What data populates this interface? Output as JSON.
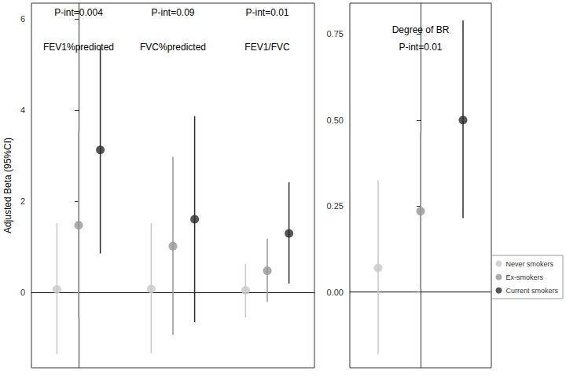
{
  "chart_data": [
    {
      "type": "scatter",
      "categories": [
        "FEV1%predicted",
        "FVC%predicted",
        "FEV1/FVC"
      ],
      "annotations": [
        "P-int=0.004",
        "P-int=0.09",
        "P-int=0.01"
      ],
      "y_label": "Adjusted Beta (95%CI)",
      "ylim": [
        -1.65,
        6.35
      ],
      "yticks": [
        0,
        2,
        4,
        6
      ],
      "grid": false,
      "tick_labels": "y",
      "legend": "right",
      "series": [
        {
          "name": "Never smokers",
          "color": "#c8c8c8",
          "marker": "circle",
          "values": [
            0.07,
            0.08,
            0.05
          ],
          "ci_lower": [
            -1.35,
            -1.33,
            -0.55
          ],
          "ci_upper": [
            1.52,
            1.52,
            0.63
          ]
        },
        {
          "name": "Ex-smokers",
          "color": "#969696",
          "marker": "circle",
          "values": [
            1.48,
            1.02,
            0.48
          ],
          "ci_lower": [
            -0.55,
            -0.93,
            -0.2
          ],
          "ci_upper": [
            3.53,
            2.98,
            1.18
          ]
        },
        {
          "name": "Current smokers",
          "color": "#2b2b2b",
          "marker": "circle",
          "values": [
            3.13,
            1.61,
            1.3
          ],
          "ci_lower": [
            0.86,
            -0.65,
            0.2
          ],
          "ci_upper": [
            5.4,
            3.87,
            2.42
          ]
        }
      ]
    },
    {
      "type": "scatter",
      "categories": [
        "Degree of BR"
      ],
      "annotations": [
        "P-int=0.01"
      ],
      "ylim": [
        -0.22,
        0.84
      ],
      "yticks": [
        {
          "value": 0,
          "label": "0.00"
        },
        {
          "value": 0.25,
          "label": "0.25"
        },
        {
          "value": 0.5,
          "label": "0.50"
        },
        {
          "value": 0.75,
          "label": "0.75"
        }
      ],
      "grid": false,
      "tick_labels": "y",
      "series": [
        {
          "name": "Never smokers",
          "color": "#c8c8c8",
          "marker": "circle",
          "values": [
            0.07
          ],
          "ci_lower": [
            -0.18
          ],
          "ci_upper": [
            0.325
          ]
        },
        {
          "name": "Ex-smokers",
          "color": "#969696",
          "marker": "circle",
          "values": [
            0.235
          ],
          "ci_lower": [
            0.01
          ],
          "ci_upper": [
            0.465
          ]
        },
        {
          "name": "Current smokers",
          "color": "#2b2b2b",
          "marker": "circle",
          "values": [
            0.5
          ],
          "ci_lower": [
            0.215
          ],
          "ci_upper": [
            0.79
          ]
        }
      ]
    }
  ]
}
